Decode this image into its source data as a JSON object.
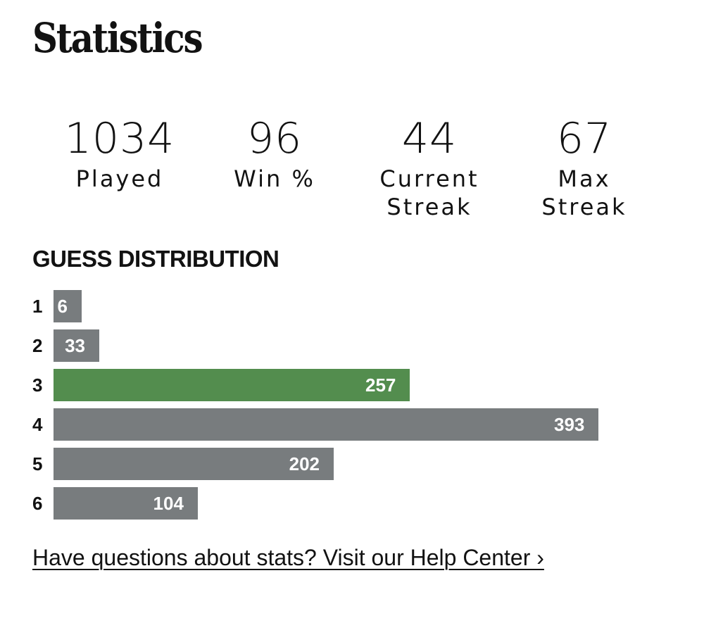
{
  "title": "Statistics",
  "stats": [
    {
      "value": "1034",
      "label": "Played"
    },
    {
      "value": "96",
      "label": "Win %"
    },
    {
      "value": "44",
      "label": "Current\nStreak"
    },
    {
      "value": "67",
      "label": "Max\nStreak"
    }
  ],
  "distribution": {
    "heading": "GUESS DISTRIBUTION",
    "rows": [
      {
        "guess": "1",
        "count": 6,
        "highlight": false
      },
      {
        "guess": "2",
        "count": 33,
        "highlight": false
      },
      {
        "guess": "3",
        "count": 257,
        "highlight": true
      },
      {
        "guess": "4",
        "count": 393,
        "highlight": false
      },
      {
        "guess": "5",
        "count": 202,
        "highlight": false
      },
      {
        "guess": "6",
        "count": 104,
        "highlight": false
      }
    ]
  },
  "colors": {
    "bar": "#787c7e",
    "bar_highlight": "#538d4e",
    "text": "#121212"
  },
  "help_link": "Have questions about stats? Visit our Help Center ›"
}
